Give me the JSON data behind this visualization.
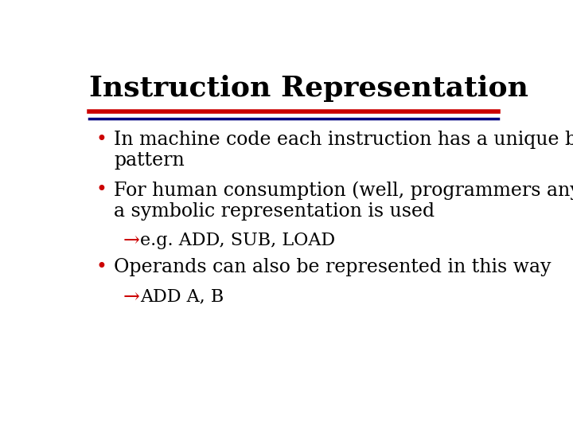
{
  "title": "Instruction Representation",
  "title_fontsize": 26,
  "title_color": "#000000",
  "title_bold": true,
  "title_font": "serif",
  "background_color": "#ffffff",
  "line1_color": "#cc0000",
  "line2_color": "#000080",
  "bullet_color": "#cc0000",
  "sub_bullet_color": "#cc0000",
  "bullet_char": "•",
  "sub_bullet_char": "→",
  "body_font": "serif",
  "body_fontsize": 17,
  "sub_fontsize": 16,
  "bullets": [
    {
      "lines": [
        "In machine code each instruction has a unique bit",
        "pattern"
      ],
      "sub": false
    },
    {
      "lines": [
        "For human consumption (well, programmers anyway)",
        "a symbolic representation is used"
      ],
      "sub": false
    },
    {
      "lines": [
        "e.g. ADD, SUB, LOAD"
      ],
      "sub": true
    },
    {
      "lines": [
        "Operands can also be represented in this way"
      ],
      "sub": false
    },
    {
      "lines": [
        "ADD A, B"
      ],
      "sub": true
    }
  ]
}
